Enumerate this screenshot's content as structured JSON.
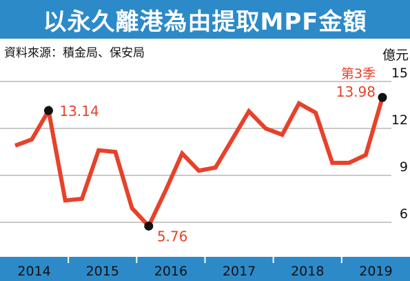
{
  "title": "以永久離港為由提取MPF金額",
  "source": "資料來源：積金局、保安局",
  "unit": "億元",
  "colors": {
    "title_bg": "#2c8ac9",
    "axis_bg": "#2c8ac9",
    "line": "#e8412a",
    "label": "#e8412a",
    "marker": "#111111",
    "grid": "#a9a9a9",
    "divider": "#ffffff"
  },
  "chart_data": {
    "type": "line",
    "title": "以永久離港為由提取MPF金額",
    "xlabel": "",
    "ylabel": "億元",
    "ylim": [
      5,
      15
    ],
    "yticks": [
      6,
      9,
      12,
      15
    ],
    "grid": true,
    "year_labels": [
      "2014",
      "2015",
      "2016",
      "2017",
      "2018",
      "2019"
    ],
    "series": [
      {
        "values": [
          10.9,
          11.3,
          13.14,
          7.4,
          7.5,
          10.6,
          10.5,
          6.9,
          5.76,
          8.0,
          10.4,
          9.3,
          9.5,
          11.3,
          13.1,
          12.0,
          11.6,
          13.6,
          13.0,
          9.8,
          9.8,
          10.3,
          13.98
        ]
      }
    ],
    "annotations": [
      {
        "point_index": 2,
        "text": "13.14"
      },
      {
        "point_index": 8,
        "text": "5.76"
      },
      {
        "point_index": 22,
        "text": "13.98"
      }
    ],
    "last_point_label": "第3季"
  }
}
